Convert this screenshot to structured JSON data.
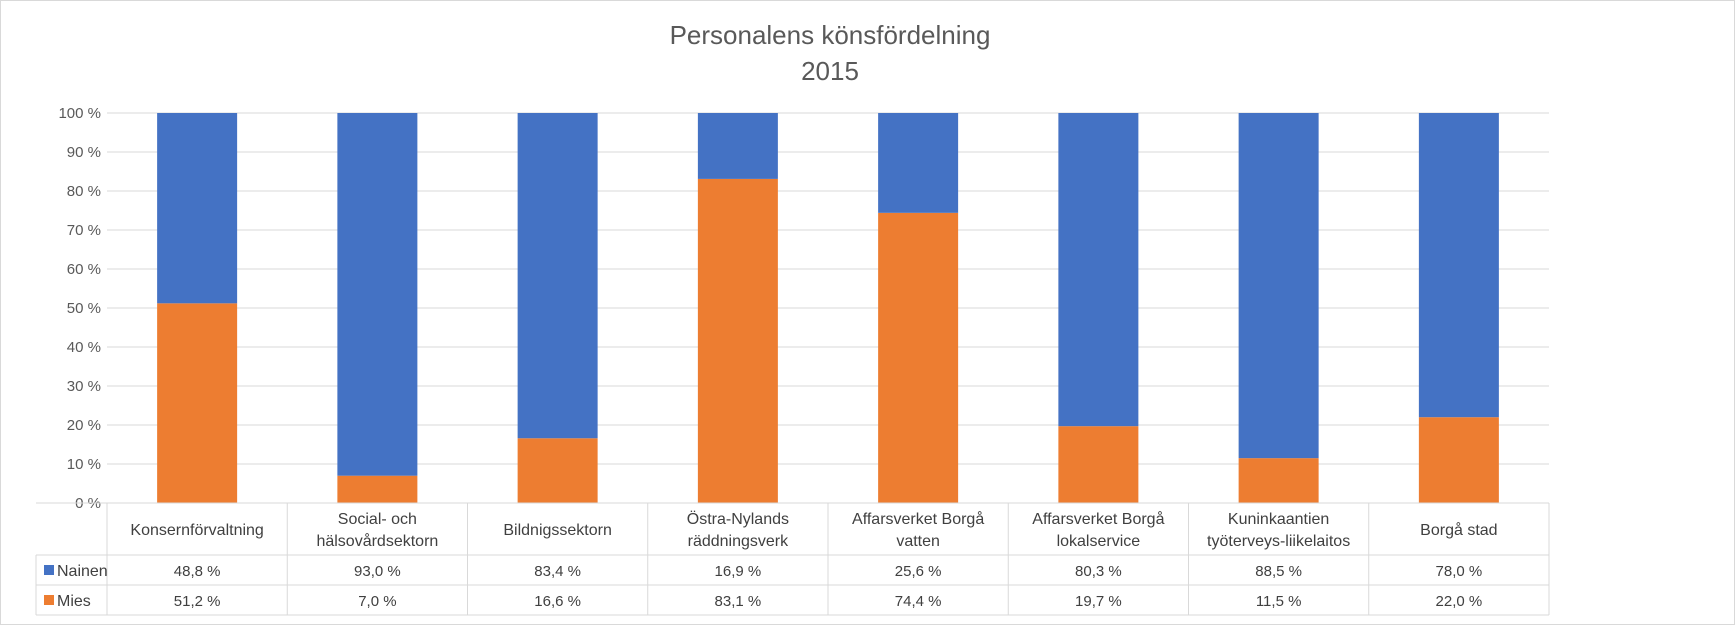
{
  "chart_data": {
    "type": "bar",
    "stacked": true,
    "title": [
      "Personalens könsfördelning",
      "2015"
    ],
    "categories": [
      [
        "Konsernförvaltning"
      ],
      [
        "Social- och",
        "hälsovårdsektorn"
      ],
      [
        "Bildnigssektorn"
      ],
      [
        "Östra-Nylands",
        "räddningsverk"
      ],
      [
        "Affarsverket Borgå",
        "vatten"
      ],
      [
        "Affarsverket Borgå",
        "lokalservice"
      ],
      [
        "Kuninkaantien",
        "työterveys-liikelaitos"
      ],
      [
        "Borgå stad"
      ]
    ],
    "series": [
      {
        "name": "Nainen",
        "color": "#4472C4",
        "values": [
          48.8,
          93.0,
          83.4,
          16.9,
          25.6,
          80.3,
          88.5,
          78.0
        ],
        "labels": [
          "48,8 %",
          "93,0 %",
          "83,4 %",
          "16,9 %",
          "25,6 %",
          "80,3 %",
          "88,5 %",
          "78,0 %"
        ]
      },
      {
        "name": "Mies",
        "color": "#ED7D31",
        "values": [
          51.2,
          7.0,
          16.6,
          83.1,
          74.4,
          19.7,
          11.5,
          22.0
        ],
        "labels": [
          "51,2 %",
          "7,0 %",
          "16,6 %",
          "83,1 %",
          "74,4 %",
          "19,7 %",
          "11,5 %",
          "22,0 %"
        ]
      }
    ],
    "ylim": [
      0,
      100
    ],
    "yticks": [
      "0 %",
      "10 %",
      "20 %",
      "30 %",
      "40 %",
      "50 %",
      "60 %",
      "70 %",
      "80 %",
      "90 %",
      "100 %"
    ],
    "grid": true,
    "legend": "data-table",
    "gridline_color": "#d9d9d9"
  }
}
